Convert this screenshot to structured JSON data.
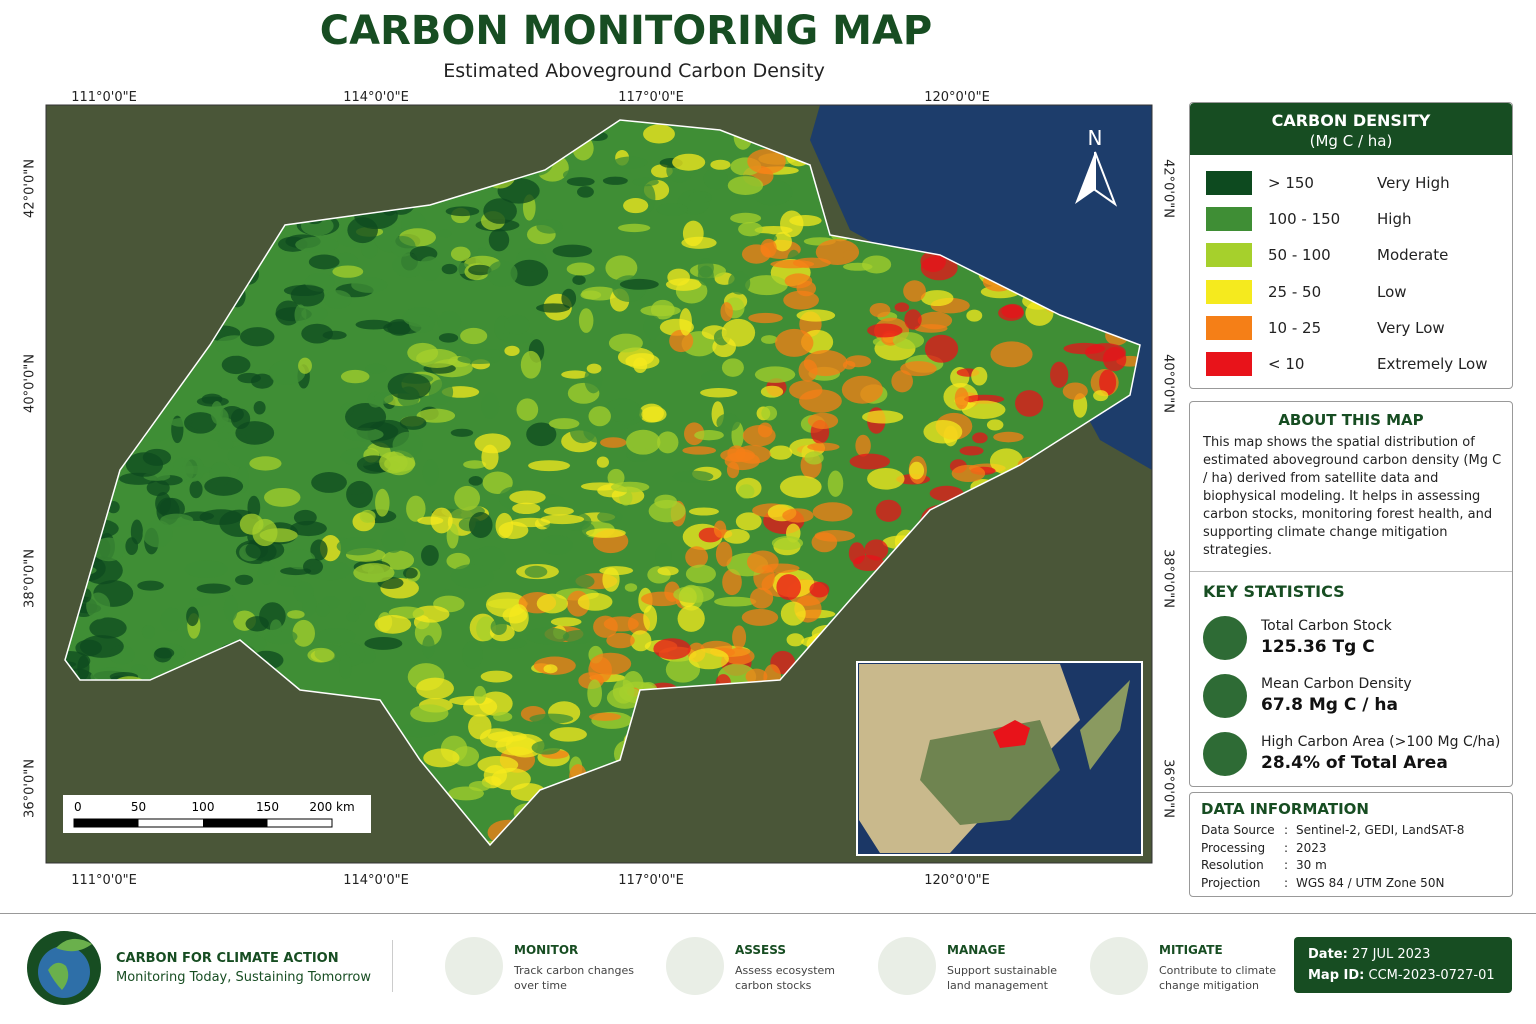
{
  "header": {
    "title": "CARBON MONITORING MAP",
    "subtitle": "Estimated Aboveground Carbon Density"
  },
  "map": {
    "lon_labels": [
      "111°0'0\"E",
      "114°0'0\"E",
      "117°0'0\"E",
      "120°0'0\"E"
    ],
    "lat_labels": [
      "42°0'0\"N",
      "40°0'0\"N",
      "38°0'0\"N",
      "36°0'0\"N"
    ],
    "north": "N",
    "scale_ticks": [
      "0",
      "50",
      "100",
      "150",
      "200 km"
    ]
  },
  "legend": {
    "title": "CARBON DENSITY",
    "unit": "(Mg C / ha)",
    "items": [
      {
        "color": "#0d4a1f",
        "range": "> 150",
        "label": "Very High"
      },
      {
        "color": "#3f8e35",
        "range": "100 - 150",
        "label": "High"
      },
      {
        "color": "#a6d02c",
        "range": "50 - 100",
        "label": "Moderate"
      },
      {
        "color": "#f5ea1e",
        "range": "25 - 50",
        "label": "Low"
      },
      {
        "color": "#f57f17",
        "range": "10 - 25",
        "label": "Very Low"
      },
      {
        "color": "#e8131a",
        "range": "< 10",
        "label": "Extremely Low"
      }
    ]
  },
  "about": {
    "title": "ABOUT THIS MAP",
    "text": "This map shows the spatial distribution of estimated aboveground carbon density (Mg C / ha) derived from satellite data and biophysical modeling. It helps in assessing carbon stocks, monitoring forest health, and supporting climate change mitigation strategies."
  },
  "stats": {
    "title": "KEY STATISTICS",
    "items": [
      {
        "label": "Total Carbon Stock",
        "value": "125.36 Tg C"
      },
      {
        "label": "Mean Carbon Density",
        "value": "67.8 Mg C / ha"
      },
      {
        "label": "High Carbon Area (>100 Mg C/ha)",
        "value": "28.4% of Total Area"
      }
    ]
  },
  "data_info": {
    "title": "DATA INFORMATION",
    "separator": ":",
    "rows": [
      {
        "key": "Data Source",
        "value": "Sentinel-2, GEDI, LandSAT-8"
      },
      {
        "key": "Processing",
        "value": "2023"
      },
      {
        "key": "Resolution",
        "value": "30 m"
      },
      {
        "key": "Projection",
        "value": "WGS 84 / UTM Zone 50N"
      }
    ]
  },
  "footer": {
    "org": "CARBON FOR CLIMATE ACTION",
    "tagline": "Monitoring Today, Sustaining Tomorrow",
    "pillars": [
      {
        "title": "MONITOR",
        "text": "Track carbon changes over time"
      },
      {
        "title": "ASSESS",
        "text": "Assess ecosystem carbon stocks"
      },
      {
        "title": "MANAGE",
        "text": "Support sustainable land management"
      },
      {
        "title": "MITIGATE",
        "text": "Contribute to climate change mitigation"
      }
    ],
    "date_label": "Date:",
    "date": "27 JUL 2023",
    "id_label": "Map ID:",
    "map_id": "CCM-2023-0727-01"
  }
}
